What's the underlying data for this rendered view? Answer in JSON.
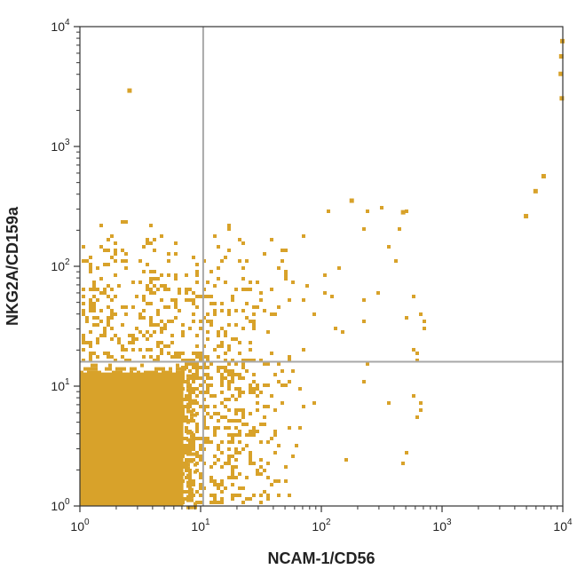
{
  "chart_data": {
    "type": "scatter",
    "plot_style": "flow-cytometry dot plot with quadrant gates",
    "xlabel": "NCAM-1/CD56",
    "ylabel": "NKG2A/CD159a",
    "x_scale": "log",
    "y_scale": "log",
    "xlim": [
      1,
      10000
    ],
    "ylim": [
      1,
      10000
    ],
    "x_ticks": [
      {
        "value": 1,
        "base": "10",
        "exp": "0"
      },
      {
        "value": 10,
        "base": "10",
        "exp": "1"
      },
      {
        "value": 100,
        "base": "10",
        "exp": "2"
      },
      {
        "value": 1000,
        "base": "10",
        "exp": "3"
      },
      {
        "value": 10000,
        "base": "10",
        "exp": "4"
      }
    ],
    "y_ticks": [
      {
        "value": 1,
        "base": "10",
        "exp": "0"
      },
      {
        "value": 10,
        "base": "10",
        "exp": "1"
      },
      {
        "value": 100,
        "base": "10",
        "exp": "2"
      },
      {
        "value": 1000,
        "base": "10",
        "exp": "3"
      },
      {
        "value": 10000,
        "base": "10",
        "exp": "4"
      }
    ],
    "quadrant_gates": {
      "x": 10.5,
      "y": 16
    },
    "point_color": "#D8A22A",
    "gate_color": "#A8A8A8",
    "grid": false,
    "populations": [
      {
        "region": "lower-left dense core",
        "x_range": [
          1,
          7
        ],
        "y_range": [
          1,
          14
        ],
        "density": "very high"
      },
      {
        "region": "lower-left to lower-right spread",
        "x_range": [
          7,
          60
        ],
        "y_range": [
          1,
          15
        ],
        "density": "medium"
      },
      {
        "region": "upper cluster",
        "x_range": [
          1,
          50
        ],
        "y_range": [
          20,
          200
        ],
        "density": "low-medium"
      }
    ],
    "notable_points": [
      {
        "x": 2.6,
        "y": 2900
      },
      {
        "x": 180,
        "y": 350
      },
      {
        "x": 480,
        "y": 280
      },
      {
        "x": 10000,
        "y": 7500
      },
      {
        "x": 9800,
        "y": 5600
      },
      {
        "x": 9700,
        "y": 4000
      },
      {
        "x": 9900,
        "y": 2500
      },
      {
        "x": 7000,
        "y": 560
      },
      {
        "x": 6000,
        "y": 420
      },
      {
        "x": 5000,
        "y": 260
      }
    ]
  }
}
